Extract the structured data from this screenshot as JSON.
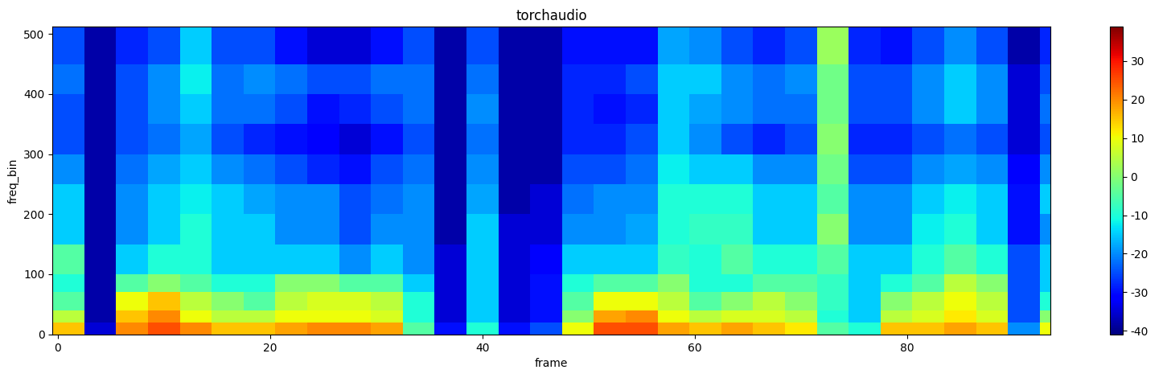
{
  "chart_data": {
    "type": "heatmap",
    "title": "torchaudio",
    "x_label": "frame",
    "y_label": "freq_bin",
    "xlim": [
      -0.5,
      93.5
    ],
    "ylim": [
      -0.5,
      512.5
    ],
    "xticks": [
      0,
      20,
      40,
      60,
      80
    ],
    "yticks": [
      0,
      100,
      200,
      300,
      400,
      500
    ],
    "x_edges": [
      -0.5,
      2.5,
      5.5,
      8.5,
      11.5,
      14.5,
      17.5,
      20.5,
      23.5,
      26.5,
      29.5,
      32.5,
      35.5,
      38.5,
      41.5,
      44.5,
      47.5,
      50.5,
      53.5,
      56.5,
      59.5,
      62.5,
      65.5,
      68.5,
      71.5,
      74.5,
      77.5,
      80.5,
      83.5,
      86.5,
      89.5,
      92.5,
      93.5
    ],
    "y_edges": [
      -0.5,
      20,
      40,
      70,
      100,
      150,
      200,
      250,
      300,
      350,
      400,
      450,
      512.5
    ],
    "cells": [
      [
        15,
        -35,
        20,
        25,
        20,
        15,
        15,
        18,
        20,
        20,
        18,
        -5,
        -30,
        -10,
        -30,
        -25,
        10,
        25,
        25,
        18,
        15,
        18,
        15,
        12,
        -5,
        -10,
        15,
        15,
        18,
        15,
        -20,
        10
      ],
      [
        5,
        -38,
        15,
        20,
        10,
        5,
        5,
        10,
        10,
        10,
        8,
        -10,
        -35,
        -15,
        -35,
        -30,
        0,
        18,
        20,
        10,
        5,
        8,
        8,
        5,
        -10,
        -15,
        5,
        8,
        12,
        8,
        -25,
        0
      ],
      [
        -5,
        -38,
        10,
        15,
        5,
        0,
        -5,
        5,
        8,
        8,
        5,
        -10,
        -35,
        -15,
        -35,
        -30,
        -5,
        10,
        10,
        5,
        -5,
        0,
        5,
        0,
        -8,
        -15,
        0,
        5,
        10,
        5,
        -25,
        -10
      ],
      [
        -10,
        -38,
        -5,
        0,
        -5,
        -10,
        -10,
        0,
        0,
        -5,
        -5,
        -15,
        -35,
        -15,
        -35,
        -30,
        -10,
        -5,
        -5,
        0,
        -10,
        -10,
        -5,
        -5,
        -8,
        -15,
        -10,
        -5,
        5,
        0,
        -25,
        -15
      ],
      [
        -5,
        -38,
        -15,
        -10,
        -10,
        -15,
        -15,
        -15,
        -15,
        -20,
        -15,
        -20,
        -35,
        -15,
        -35,
        -32,
        -15,
        -15,
        -15,
        -8,
        -10,
        -5,
        -10,
        -10,
        -5,
        -15,
        -15,
        -10,
        -5,
        -10,
        -25,
        -15
      ],
      [
        -15,
        -38,
        -20,
        -15,
        -10,
        -15,
        -15,
        -20,
        -20,
        -25,
        -20,
        -20,
        -38,
        -15,
        -35,
        -35,
        -20,
        -20,
        -18,
        -10,
        -8,
        -8,
        -15,
        -15,
        0,
        -20,
        -20,
        -12,
        -10,
        -15,
        -30,
        -20
      ],
      [
        -15,
        -38,
        -20,
        -15,
        -12,
        -15,
        -18,
        -20,
        -20,
        -25,
        -22,
        -20,
        -38,
        -18,
        -38,
        -35,
        -22,
        -20,
        -20,
        -10,
        -10,
        -10,
        -15,
        -15,
        -5,
        -20,
        -20,
        -15,
        -12,
        -15,
        -30,
        -15
      ],
      [
        -20,
        -38,
        -22,
        -18,
        -15,
        -20,
        -22,
        -25,
        -28,
        -30,
        -25,
        -22,
        -38,
        -20,
        -38,
        -38,
        -25,
        -25,
        -22,
        -12,
        -15,
        -15,
        -20,
        -20,
        -2,
        -25,
        -25,
        -20,
        -18,
        -20,
        -32,
        -20
      ],
      [
        -25,
        -38,
        -25,
        -22,
        -18,
        -25,
        -28,
        -30,
        -32,
        -35,
        -30,
        -25,
        -38,
        -22,
        -38,
        -38,
        -28,
        -28,
        -25,
        -15,
        -20,
        -25,
        -28,
        -25,
        0,
        -28,
        -28,
        -25,
        -22,
        -25,
        -35,
        -25
      ],
      [
        -25,
        -38,
        -25,
        -20,
        -15,
        -22,
        -22,
        -25,
        -30,
        -28,
        -25,
        -22,
        -38,
        -20,
        -38,
        -38,
        -28,
        -30,
        -28,
        -15,
        -18,
        -20,
        -22,
        -22,
        -2,
        -25,
        -25,
        -20,
        -15,
        -20,
        -35,
        -22
      ],
      [
        -22,
        -38,
        -25,
        -20,
        -12,
        -22,
        -20,
        -22,
        -25,
        -25,
        -22,
        -22,
        -38,
        -22,
        -38,
        -38,
        -28,
        -28,
        -25,
        -15,
        -15,
        -20,
        -22,
        -20,
        -2,
        -25,
        -25,
        -20,
        -15,
        -20,
        -35,
        -25
      ],
      [
        -25,
        -38,
        -28,
        -25,
        -15,
        -25,
        -25,
        -30,
        -35,
        -35,
        -30,
        -25,
        -38,
        -25,
        -38,
        -38,
        -30,
        -30,
        -30,
        -18,
        -20,
        -25,
        -28,
        -25,
        2,
        -28,
        -30,
        -25,
        -20,
        -25,
        -38,
        -28
      ]
    ],
    "colorbar_range": [
      -41,
      39
    ],
    "colorbar_ticks": [
      -40,
      -30,
      -20,
      -10,
      0,
      10,
      20,
      30
    ]
  }
}
